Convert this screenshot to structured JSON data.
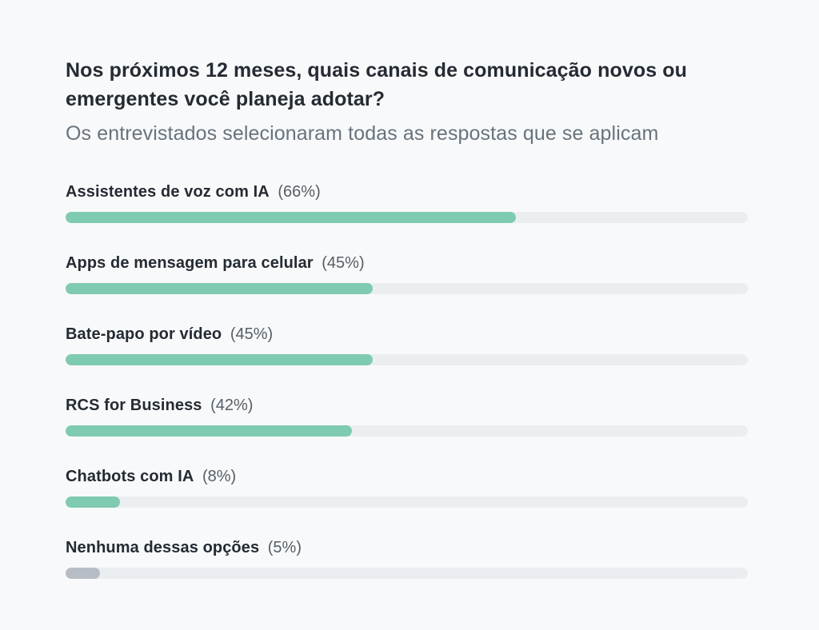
{
  "page": {
    "background": "#f8f9fa"
  },
  "header": {
    "title": "Nos próximos 12 meses, quais canais de comunicação novos ou emergentes você planeja adotar?",
    "subtitle": "Os entrevistados selecionaram todas as respostas que se aplicam"
  },
  "colors": {
    "title_text": "#242b33",
    "subtitle_text": "#67737d",
    "percent_text": "#555e66",
    "bar_green": "#7fcbb1",
    "bar_gray": "#b7bdc5",
    "bar_track": "#ebeef1"
  },
  "chart_data": {
    "type": "bar",
    "orientation": "horizontal",
    "title": "Nos próximos 12 meses, quais canais de comunicação novos ou emergentes você planeja adotar?",
    "subtitle": "Os entrevistados selecionaram todas as respostas que se aplicam",
    "unit": "%",
    "xlim": [
      0,
      100
    ],
    "grid": false,
    "legend": false,
    "categories": [
      "Assistentes de voz com IA",
      "Apps de mensagem para celular",
      "Bate-papo por vídeo",
      "RCS for Business",
      "Chatbots com IA",
      "Nenhuma dessas opções"
    ],
    "values": [
      66,
      45,
      45,
      42,
      8,
      5
    ],
    "value_labels": [
      "(66%)",
      "(45%)",
      "(45%)",
      "(42%)",
      "(8%)",
      "(5%)"
    ],
    "bar_colors": [
      "#7fcbb1",
      "#7fcbb1",
      "#7fcbb1",
      "#7fcbb1",
      "#7fcbb1",
      "#b7bdc5"
    ],
    "track_color": "#ebeef1"
  }
}
